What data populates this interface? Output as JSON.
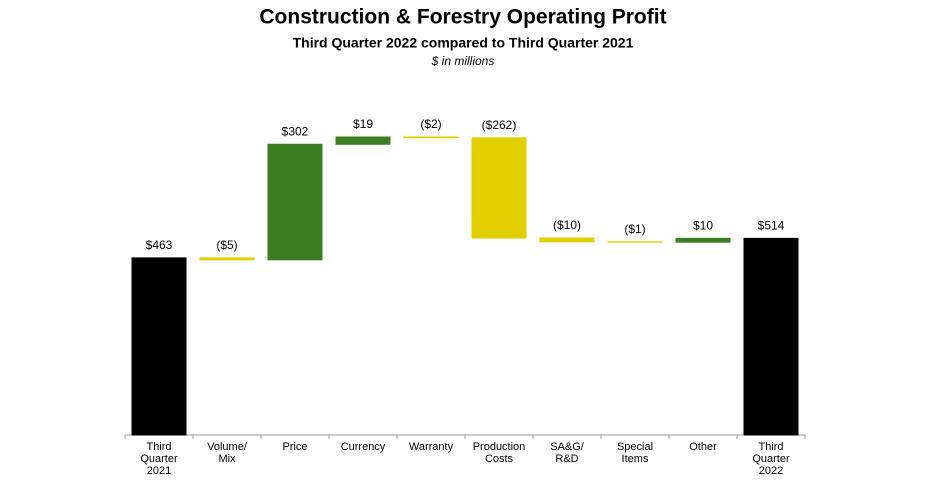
{
  "chart_data": {
    "type": "waterfall",
    "title": "Construction & Forestry Operating Profit",
    "subtitle": "Third Quarter 2022 compared to Third Quarter 2021",
    "unit_note": "$ in millions",
    "categories": [
      "Third\nQuarter\n2021",
      "Volume/\nMix",
      "Price",
      "Currency",
      "Warranty",
      "Production\nCosts",
      "SA&G/\nR&D",
      "Special\nItems",
      "Other",
      "Third\nQuarter\n2022"
    ],
    "measures": [
      "total",
      "relative",
      "relative",
      "relative",
      "relative",
      "relative",
      "relative",
      "relative",
      "relative",
      "total"
    ],
    "values": [
      463,
      -5,
      302,
      19,
      -2,
      -262,
      -10,
      -1,
      10,
      514
    ],
    "value_labels": [
      "$463",
      "($5)",
      "$302",
      "$19",
      "($2)",
      "($262)",
      "($10)",
      "($1)",
      "$10",
      "$514"
    ],
    "colors": {
      "total": "#000000",
      "increase": "#3a7d22",
      "decrease": "#e3cf00"
    }
  }
}
